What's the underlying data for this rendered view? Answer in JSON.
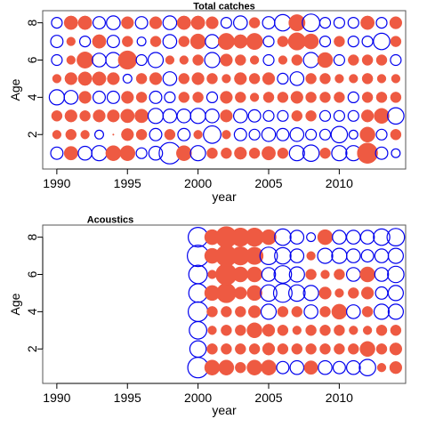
{
  "chart_data": [
    {
      "type": "scatter",
      "subtype": "bubble-residuals",
      "title": "Total catches",
      "xlabel": "year",
      "ylabel": "Age",
      "xlim": [
        1989,
        2014.7
      ],
      "ylim": [
        0.15,
        8.65
      ],
      "xticks": [
        1990,
        1995,
        2000,
        2005,
        2010
      ],
      "yticks": [
        2,
        4,
        6,
        8
      ],
      "grid": false,
      "legend": "none",
      "colors": {
        "positive": "#ee5a42",
        "negative": "#0000ee"
      },
      "encoding": "filled red = positive residual, open blue = negative residual, size = magnitude",
      "years": [
        1990,
        1991,
        1992,
        1993,
        1994,
        1995,
        1996,
        1997,
        1998,
        1999,
        2000,
        2001,
        2002,
        2003,
        2004,
        2005,
        2006,
        2007,
        2008,
        2009,
        2010,
        2011,
        2012,
        2013,
        2014
      ],
      "ages": [
        1,
        2,
        3,
        4,
        5,
        6,
        7,
        8
      ],
      "residuals": {
        "1": [
          -0.4,
          0.5,
          -0.5,
          -0.6,
          0.6,
          0.6,
          -0.3,
          -0.5,
          -1.2,
          0.6,
          -0.6,
          0.3,
          0.3,
          0.4,
          0.3,
          0.5,
          0.3,
          -0.6,
          -0.7,
          0.3,
          -0.6,
          -0.6,
          1.1,
          -0.4,
          -0.2
        ],
        "2": [
          0.2,
          0.3,
          0.2,
          -0.2,
          0,
          0.4,
          0.3,
          -0.4,
          0.3,
          -0.4,
          0.2,
          -0.8,
          0.2,
          -0.4,
          -0.3,
          -0.5,
          -0.4,
          -0.5,
          -0.3,
          -0.3,
          -0.7,
          -0.2,
          0.6,
          -0.3,
          0.3
        ],
        "3": [
          0.3,
          0.4,
          0.3,
          0.4,
          0.4,
          0.5,
          0.5,
          -0.6,
          -0.5,
          -0.5,
          -0.6,
          -0.5,
          0.4,
          -0.5,
          -0.4,
          -0.3,
          -0.3,
          0.3,
          0.3,
          -0.3,
          -0.3,
          -0.3,
          0.4,
          0.6,
          -0.7
        ],
        "4": [
          -0.6,
          -0.5,
          0.4,
          -0.4,
          -0.4,
          0.4,
          0.3,
          -0.4,
          -0.3,
          0.3,
          0.3,
          -0.3,
          0.4,
          0.3,
          0.2,
          0.3,
          0.3,
          0.4,
          0.3,
          0.3,
          0.3,
          -0.3,
          0.3,
          0.3,
          0.3
        ],
        "5": [
          0.2,
          0.4,
          0.5,
          0.5,
          0.4,
          -0.2,
          0.3,
          0.4,
          -0.5,
          0.3,
          0.4,
          0.3,
          0.2,
          0.4,
          0.3,
          0.4,
          -0.3,
          -0.5,
          0.3,
          0.3,
          0.2,
          0.2,
          0.3,
          0.2,
          0.2
        ],
        "6": [
          -0.3,
          0.2,
          0.7,
          -0.5,
          -0.6,
          0.9,
          -0.3,
          -0.6,
          0.2,
          0.2,
          0.3,
          -0.6,
          0.4,
          0.3,
          0.2,
          -0.3,
          0.2,
          0.3,
          -0.6,
          0.6,
          -0.3,
          0.3,
          0.3,
          0.3,
          -0.3
        ],
        "7": [
          -0.4,
          0.2,
          -0.3,
          0.5,
          -0.4,
          0.3,
          -0.2,
          0.3,
          -0.5,
          0.3,
          0.6,
          -0.5,
          0.7,
          0.5,
          0.7,
          -0.3,
          0.3,
          0.8,
          0.6,
          -0.3,
          0.3,
          -0.3,
          -0.3,
          -0.7,
          0.3
        ],
        "8": [
          -0.3,
          0.5,
          0.5,
          -0.4,
          -0.5,
          0.4,
          -0.4,
          0.4,
          -0.5,
          0.5,
          0.5,
          0.4,
          -0.3,
          -0.5,
          0.3,
          -0.4,
          -0.7,
          0.7,
          -0.8,
          -0.3,
          -0.3,
          -0.3,
          0.5,
          -0.3,
          0.4
        ]
      }
    },
    {
      "type": "scatter",
      "subtype": "bubble-residuals",
      "title": "Acoustics",
      "xlabel": "year",
      "ylabel": "Age",
      "xlim": [
        1989,
        2014.7
      ],
      "ylim": [
        0.15,
        8.65
      ],
      "xticks": [
        1990,
        1995,
        2000,
        2005,
        2010
      ],
      "yticks": [
        2,
        4,
        6,
        8
      ],
      "grid": false,
      "legend": "none",
      "colors": {
        "positive": "#ee5a42",
        "negative": "#0000ee"
      },
      "encoding": "filled red = positive residual, open blue = negative residual, size = magnitude",
      "years": [
        2000,
        2001,
        2002,
        2003,
        2004,
        2005,
        2006,
        2007,
        2008,
        2009,
        2010,
        2011,
        2012,
        2013,
        2014
      ],
      "ages": [
        1,
        2,
        3,
        4,
        5,
        6,
        7,
        8
      ],
      "residuals": {
        "1": [
          -1.1,
          0.6,
          0.6,
          0.3,
          0.6,
          0.6,
          -0.4,
          -0.5,
          0.5,
          -0.5,
          -0.4,
          -0.5,
          -0.7,
          0.2,
          0.4
        ],
        "2": [
          -0.7,
          0.3,
          0.3,
          0.3,
          0.3,
          0.4,
          0.3,
          0.3,
          0.3,
          0.3,
          0.3,
          0.3,
          0.6,
          0.3,
          0.4
        ],
        "3": [
          -0.8,
          0.2,
          0.3,
          0.3,
          0.6,
          0.4,
          0.3,
          0.2,
          0.3,
          0.3,
          0.3,
          0.2,
          0.2,
          0.3,
          0.3
        ],
        "4": [
          -1,
          0.3,
          0.3,
          0.3,
          0.4,
          -0.6,
          0.3,
          0.3,
          -0.5,
          0.3,
          0.6,
          -0.5,
          0.3,
          -0.6,
          -0.6
        ],
        "5": [
          -0.9,
          0.6,
          1.0,
          0.4,
          0.6,
          -0.7,
          -0.9,
          -0.7,
          -0.6,
          0.4,
          0.2,
          0.3,
          0.4,
          -0.4,
          -0.6
        ],
        "6": [
          -0.9,
          0.2,
          1.2,
          0.6,
          0.6,
          -0.5,
          -0.8,
          -0.6,
          0.3,
          0.2,
          0.3,
          -0.5,
          0.6,
          -0.5,
          -0.7
        ],
        "7": [
          -1.2,
          0.6,
          1.2,
          0.9,
          0.8,
          -0.8,
          -0.7,
          -0.5,
          0.2,
          -0.6,
          -0.6,
          -0.5,
          -0.4,
          -0.5,
          -0.6
        ],
        "8": [
          -1,
          0.6,
          1.2,
          0.9,
          0.9,
          0.6,
          -0.7,
          -0.5,
          -0.2,
          0.6,
          -0.5,
          -0.5,
          -0.5,
          -0.7,
          -0.8
        ]
      }
    }
  ]
}
